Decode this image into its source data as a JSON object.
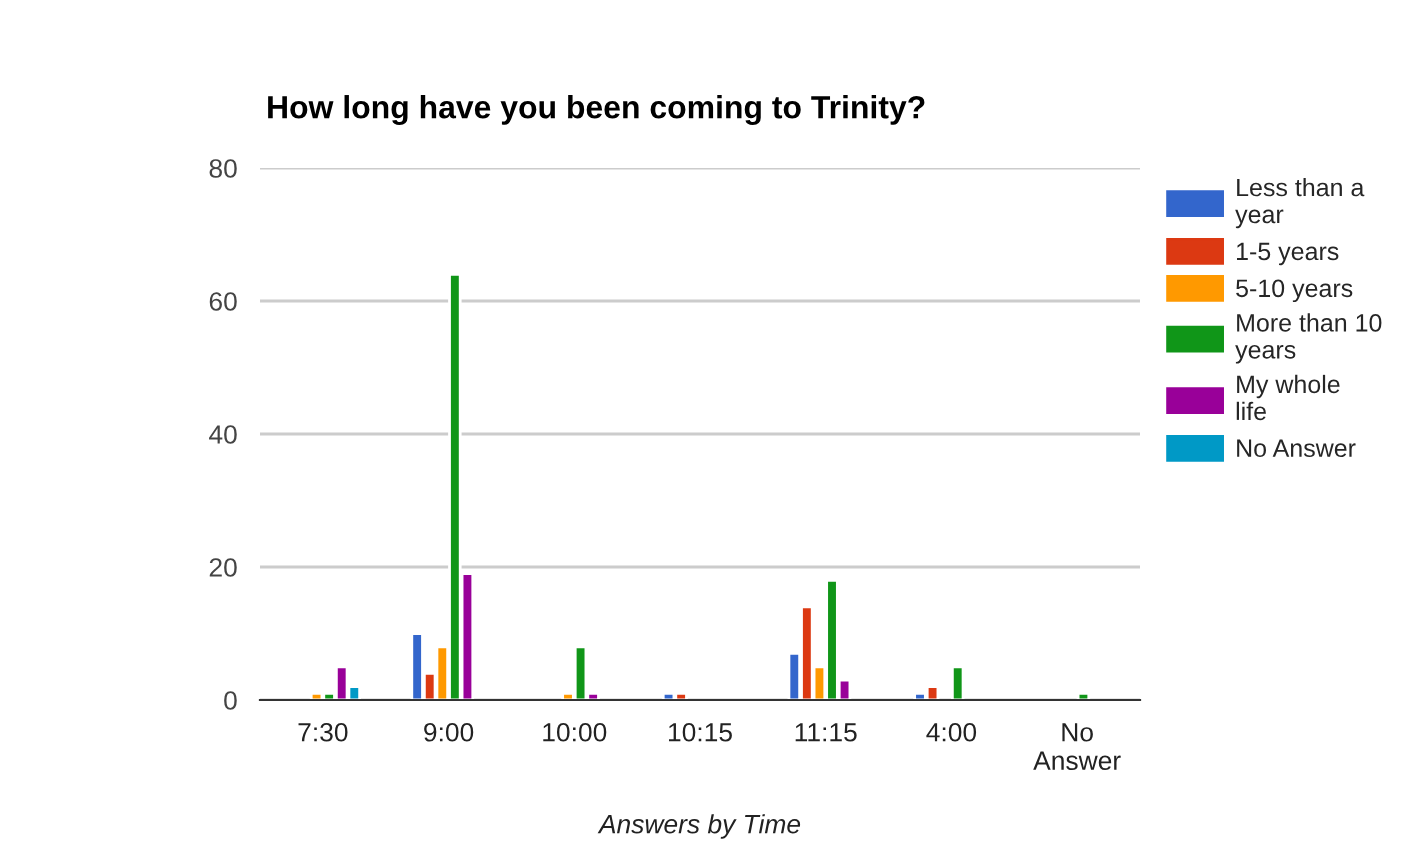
{
  "chart_data": {
    "type": "bar",
    "title": "How long have you been coming to Trinity?",
    "xlabel": "Answers by Time",
    "categories": [
      "7:30",
      "9:00",
      "10:00",
      "10:15",
      "11:15",
      "4:00",
      "No Answer"
    ],
    "series": [
      {
        "name": "Less than a year",
        "color": "#3366cc",
        "values": [
          0,
          10,
          0,
          1,
          7,
          1,
          0
        ]
      },
      {
        "name": "1-5 years",
        "color": "#dc3912",
        "values": [
          0,
          4,
          0,
          1,
          14,
          2,
          0
        ]
      },
      {
        "name": "5-10 years",
        "color": "#ff9900",
        "values": [
          1,
          8,
          1,
          0,
          5,
          0,
          0
        ]
      },
      {
        "name": "More than 10 years",
        "color": "#109618",
        "values": [
          1,
          64,
          8,
          0,
          18,
          5,
          1
        ]
      },
      {
        "name": "My whole life",
        "color": "#990099",
        "values": [
          5,
          19,
          1,
          0,
          3,
          0,
          0
        ]
      },
      {
        "name": "No Answer",
        "color": "#0099c6",
        "values": [
          2,
          0,
          0,
          0,
          0,
          0,
          0
        ]
      }
    ],
    "ylim": [
      0,
      80
    ],
    "yticks": [
      0,
      20,
      40,
      60,
      80
    ],
    "grid": "y",
    "legend": "right"
  }
}
